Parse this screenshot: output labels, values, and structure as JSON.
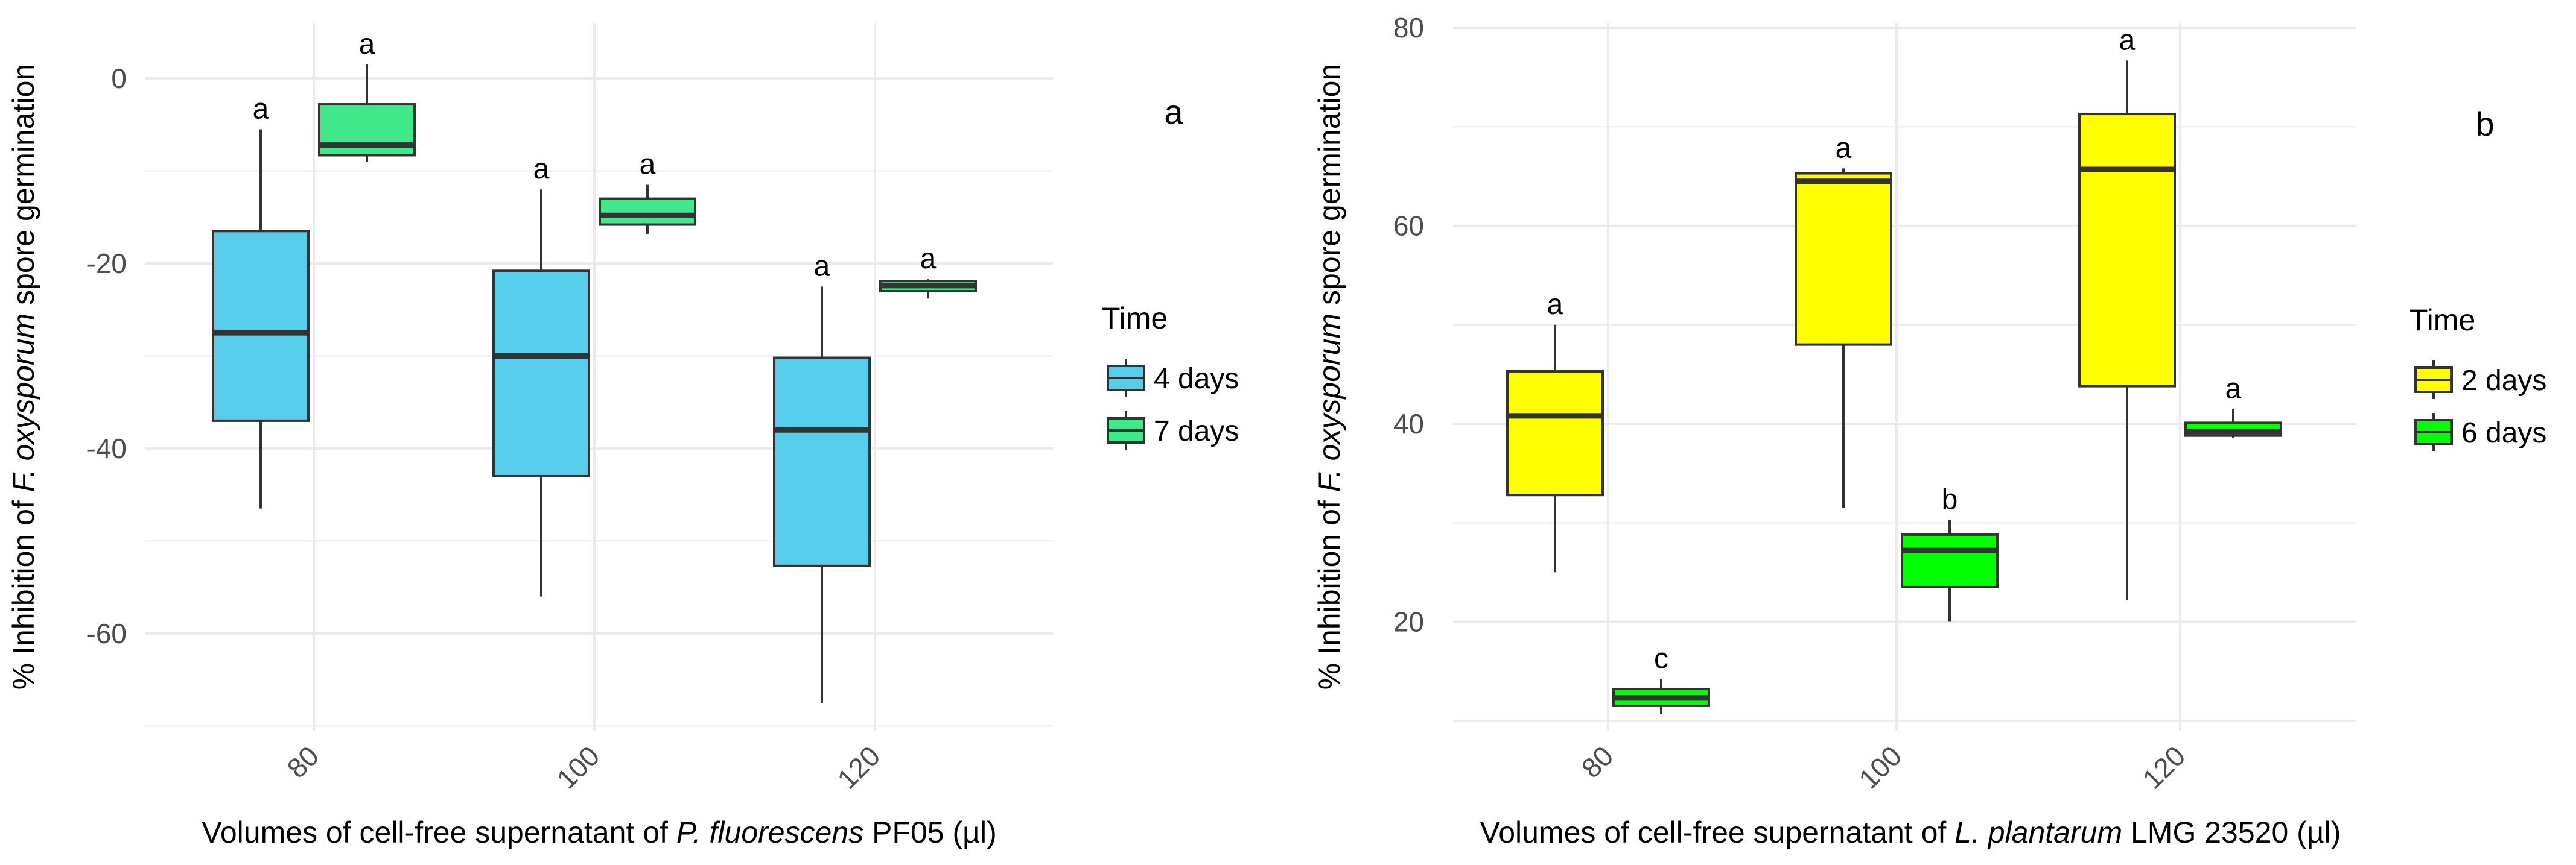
{
  "colors": {
    "grid": "#ebebeb",
    "axis_text": "#4d4d4d",
    "text": "#000000",
    "box_stroke": "#333333"
  },
  "chart_data": [
    {
      "type": "boxplot",
      "panel_label": "a",
      "xlabel": {
        "pre": "Volumes of cell-free supernatant of ",
        "italic": "P. fluorescens",
        "post": " PF05 (µl)"
      },
      "ylabel": {
        "pre": "% Inhibition of ",
        "italic": "F. oxysporum",
        "post": " spore germination"
      },
      "categories": [
        "80",
        "100",
        "120"
      ],
      "ylim": [
        -70.5,
        6
      ],
      "yticks": [
        0,
        -20,
        -40,
        -60
      ],
      "legend": {
        "title": "Time",
        "position": "right"
      },
      "series": [
        {
          "name": "4 days",
          "color": "#56cdea",
          "boxes": [
            {
              "category": "80",
              "min": -46.5,
              "q1": -37.0,
              "median": -27.5,
              "q3": -16.5,
              "max": -5.5,
              "letter": "a"
            },
            {
              "category": "100",
              "min": -56.0,
              "q1": -43.0,
              "median": -30.0,
              "q3": -20.8,
              "max": -12.0,
              "letter": "a"
            },
            {
              "category": "120",
              "min": -67.5,
              "q1": -52.7,
              "median": -38.0,
              "q3": -30.2,
              "max": -22.5,
              "letter": "a"
            }
          ]
        },
        {
          "name": "7 days",
          "color": "#3fe98a",
          "boxes": [
            {
              "category": "80",
              "min": -9.0,
              "q1": -8.3,
              "median": -7.2,
              "q3": -2.8,
              "max": 1.5,
              "letter": "a"
            },
            {
              "category": "100",
              "min": -16.8,
              "q1": -15.8,
              "median": -14.8,
              "q3": -13.0,
              "max": -11.5,
              "letter": "a"
            },
            {
              "category": "120",
              "min": -23.8,
              "q1": -23.0,
              "median": -22.4,
              "q3": -21.9,
              "max": -21.7,
              "letter": "a"
            }
          ]
        }
      ]
    },
    {
      "type": "boxplot",
      "panel_label": "b",
      "xlabel": {
        "pre": "Volumes of cell-free supernatant of ",
        "italic": "L. plantarum",
        "post": " LMG 23520 (µl)"
      },
      "ylabel": {
        "pre": "% Inhibition of ",
        "italic": "F. oxysporum",
        "post": " spore germination"
      },
      "categories": [
        "80",
        "100",
        "120"
      ],
      "ylim": [
        9,
        80.5
      ],
      "yticks": [
        20,
        40,
        60,
        80
      ],
      "legend": {
        "title": "Time",
        "position": "right"
      },
      "series": [
        {
          "name": "2 days",
          "color": "#ffff00",
          "boxes": [
            {
              "category": "80",
              "min": 25.0,
              "q1": 32.8,
              "median": 40.8,
              "q3": 45.3,
              "max": 50.0,
              "letter": "a"
            },
            {
              "category": "100",
              "min": 31.5,
              "q1": 48.0,
              "median": 64.5,
              "q3": 65.3,
              "max": 65.8,
              "letter": "a"
            },
            {
              "category": "120",
              "min": 22.2,
              "q1": 43.8,
              "median": 65.7,
              "q3": 71.3,
              "max": 76.7,
              "letter": "a"
            }
          ]
        },
        {
          "name": "6 days",
          "color": "#00ff00",
          "boxes": [
            {
              "category": "80",
              "min": 10.7,
              "q1": 11.5,
              "median": 12.3,
              "q3": 13.2,
              "max": 14.2,
              "letter": "c"
            },
            {
              "category": "100",
              "min": 20.0,
              "q1": 23.5,
              "median": 27.2,
              "q3": 28.8,
              "max": 30.3,
              "letter": "b"
            },
            {
              "category": "120",
              "min": 38.6,
              "q1": 38.8,
              "median": 39.2,
              "q3": 40.1,
              "max": 41.5,
              "letter": "a"
            }
          ]
        }
      ]
    }
  ]
}
